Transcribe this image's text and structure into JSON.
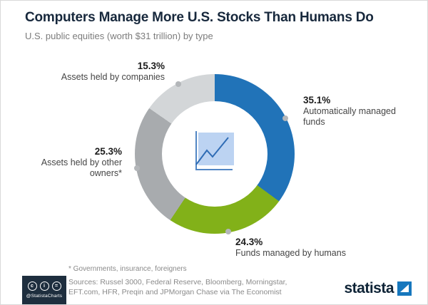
{
  "chart_data": {
    "type": "pie",
    "shape": "donut",
    "title": "Computers Manage More U.S. Stocks Than Humans Do",
    "subtitle": "U.S. public equities (worth $31 trillion) by type",
    "unit": "percent",
    "start_angle_deg": 0,
    "direction": "clockwise",
    "segments": [
      {
        "label": "Automatically managed funds",
        "pct_label": "35.1%",
        "value": 35.1,
        "color": "#2173b8"
      },
      {
        "label": "Funds managed by humans",
        "pct_label": "24.3%",
        "value": 24.3,
        "color": "#82b119"
      },
      {
        "label": "Assets held by other owners*",
        "pct_label": "25.3%",
        "value": 25.3,
        "color": "#a8abae"
      },
      {
        "label": "Assets held by companies",
        "pct_label": "15.3%",
        "value": 15.3,
        "color": "#d3d6d8"
      }
    ],
    "center_icon": "line-chart-icon",
    "dot_color": "#b3b6b9"
  },
  "footer": {
    "footnote": "* Governments, insurance, foreigners",
    "sources": "Sources: Russel 3000, Federal Reserve, Bloomberg, Morningstar, EFT.com, HFR, Preqin and JPMorgan Chase via The Economist",
    "badge": {
      "handle": "@StatistaCharts",
      "icons": [
        {
          "name": "cc-license-icon",
          "glyph": "c"
        },
        {
          "name": "cc-attribution-icon",
          "glyph": "i"
        },
        {
          "name": "cc-nd-icon",
          "glyph": "="
        }
      ]
    },
    "brand": "statista"
  }
}
